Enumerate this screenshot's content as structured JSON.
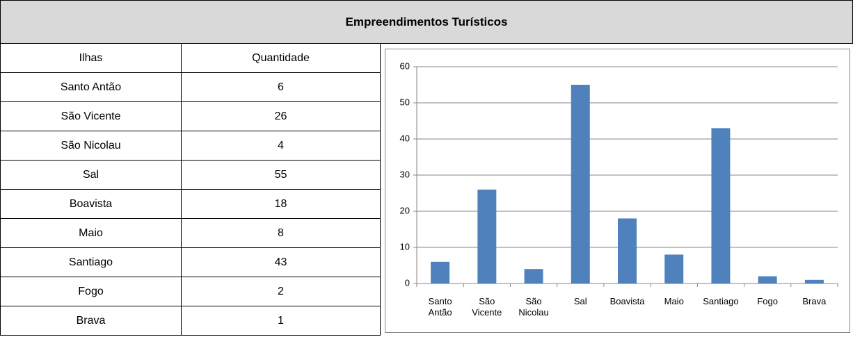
{
  "header": {
    "title": "Empreendimentos Turísticos"
  },
  "table": {
    "columns": [
      "Ilhas",
      "Quantidade"
    ],
    "rows": [
      [
        "Santo Antão",
        6
      ],
      [
        "São Vicente",
        26
      ],
      [
        "São Nicolau",
        4
      ],
      [
        "Sal",
        55
      ],
      [
        "Boavista",
        18
      ],
      [
        "Maio",
        8
      ],
      [
        "Santiago",
        43
      ],
      [
        "Fogo",
        2
      ],
      [
        "Brava",
        1
      ]
    ]
  },
  "chart_data": {
    "type": "bar",
    "categories": [
      "Santo Antão",
      "São Vicente",
      "São Nicolau",
      "Sal",
      "Boavista",
      "Maio",
      "Santiago",
      "Fogo",
      "Brava"
    ],
    "values": [
      6,
      26,
      4,
      55,
      18,
      8,
      43,
      2,
      1
    ],
    "color": "#4f81bd",
    "ylim": [
      0,
      60
    ],
    "yticks": [
      0,
      10,
      20,
      30,
      40,
      50,
      60
    ],
    "grid": true
  }
}
